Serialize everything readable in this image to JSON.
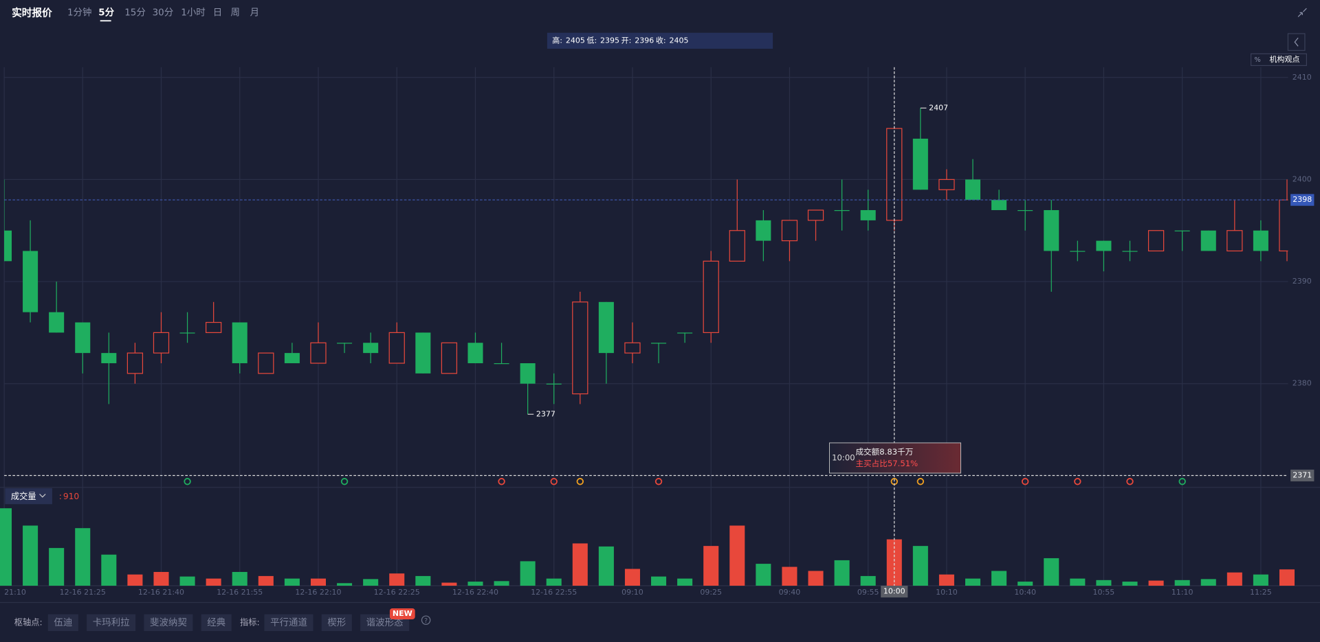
{
  "toolbar": {
    "title": "实时报价",
    "tabs": [
      "1分钟",
      "5分",
      "15分",
      "30分",
      "1小时",
      "日",
      "周",
      "月"
    ],
    "active": 1
  },
  "ohlc_bar": {
    "high_label": "高:",
    "low_label": "低:",
    "open_label": "开:",
    "close_label": "收:"
  },
  "side_buttons": {
    "percent": "%",
    "views": "机构观点"
  },
  "chart_data": {
    "type": "candlestick",
    "categories": [
      "21:10",
      null,
      null,
      "12-16 21:25",
      null,
      null,
      "12-16 21:40",
      null,
      null,
      "12-16 21:55",
      null,
      null,
      "12-16 22:10",
      null,
      null,
      "12-16 22:25",
      null,
      null,
      "12-16 22:40",
      null,
      null,
      "12-16 22:55",
      null,
      null,
      "09:10",
      null,
      null,
      "09:25",
      null,
      null,
      "09:40",
      null,
      null,
      "09:55",
      null,
      null,
      "10:10",
      null,
      null,
      "10:40",
      null,
      null,
      "10:55",
      null,
      null,
      "11:10",
      null,
      null,
      "11:25",
      null
    ],
    "open": [
      2395,
      2393,
      2387,
      2386,
      2383,
      2381,
      2383,
      2385,
      2385,
      2386,
      2381,
      2383,
      2382,
      2384,
      2384,
      2382,
      2385,
      2381,
      2384,
      2382,
      2382,
      2380,
      2379,
      2388,
      2383,
      2384,
      2385,
      2385,
      2392,
      2396,
      2394,
      2396,
      2397,
      2397,
      2396,
      2404,
      2399,
      2400,
      2398,
      2397,
      2397,
      2393,
      2394,
      2393,
      2393,
      2395,
      2395,
      2393,
      2395,
      2393
    ],
    "high": [
      2400,
      2396,
      2390,
      2386,
      2385,
      2384,
      2387,
      2387,
      2388,
      2386,
      2383,
      2384,
      2386,
      2384,
      2385,
      2386,
      2385,
      2384,
      2385,
      2384,
      2382,
      2381,
      2389,
      2388,
      2386,
      2384,
      2385,
      2393,
      2400,
      2397,
      2396,
      2397,
      2400,
      2399,
      2405,
      2407,
      2401,
      2402,
      2399,
      2398,
      2398,
      2394,
      2394,
      2394,
      2395,
      2395,
      2395,
      2398,
      2396,
      2400
    ],
    "low": [
      2392,
      2386,
      2385,
      2381,
      2378,
      2380,
      2382,
      2384,
      2385,
      2381,
      2381,
      2382,
      2382,
      2383,
      2382,
      2382,
      2381,
      2381,
      2382,
      2382,
      2377,
      2378,
      2378,
      2380,
      2382,
      2382,
      2384,
      2384,
      2392,
      2392,
      2392,
      2394,
      2395,
      2395,
      2395,
      2399,
      2398,
      2398,
      2397,
      2395,
      2389,
      2392,
      2391,
      2392,
      2393,
      2393,
      2393,
      2393,
      2392,
      2392
    ],
    "close": [
      2392,
      2387,
      2385,
      2383,
      2382,
      2383,
      2385,
      2385,
      2386,
      2382,
      2383,
      2382,
      2384,
      2384,
      2383,
      2385,
      2381,
      2384,
      2382,
      2382,
      2380,
      2380,
      2388,
      2383,
      2384,
      2384,
      2385,
      2392,
      2395,
      2394,
      2396,
      2397,
      2397,
      2396,
      2405,
      2399,
      2400,
      2398,
      2397,
      2397,
      2393,
      2393,
      2393,
      2393,
      2395,
      2395,
      2393,
      2395,
      2393,
      2398
    ],
    "volume": [
      1520,
      1180,
      740,
      1130,
      610,
      220,
      270,
      180,
      140,
      270,
      190,
      140,
      140,
      50,
      130,
      240,
      190,
      60,
      80,
      90,
      480,
      140,
      830,
      770,
      330,
      180,
      140,
      780,
      1180,
      430,
      370,
      290,
      500,
      190,
      910,
      780,
      220,
      140,
      290,
      80,
      540,
      140,
      110,
      80,
      100,
      110,
      130,
      260,
      220,
      320
    ],
    "ylim": [
      2370,
      2411
    ],
    "yticks": [
      2380,
      2390,
      2400,
      2410
    ],
    "volume_ylim": [
      0,
      1600
    ],
    "up_color": "#e8483b",
    "down_color": "#1fae5f",
    "grid": true,
    "crosshair": {
      "index": 34,
      "time": "10:00",
      "price": 2371
    },
    "volume_title": "成交量",
    "volume_prefix": ":"
  },
  "hover_box": {
    "time": "10:00",
    "turnover": "成交额8.83千万",
    "buy_ratio": "主买占比57.51%"
  },
  "footer": {
    "pivot_label": "枢轴点:",
    "pivots": [
      "伍迪",
      "卡玛利拉",
      "斐波纳契",
      "经典"
    ],
    "indicator_label": "指标:",
    "indicators": [
      "平行通道",
      "楔形",
      "谐波形态"
    ],
    "badge": "NEW",
    "help": "?"
  }
}
